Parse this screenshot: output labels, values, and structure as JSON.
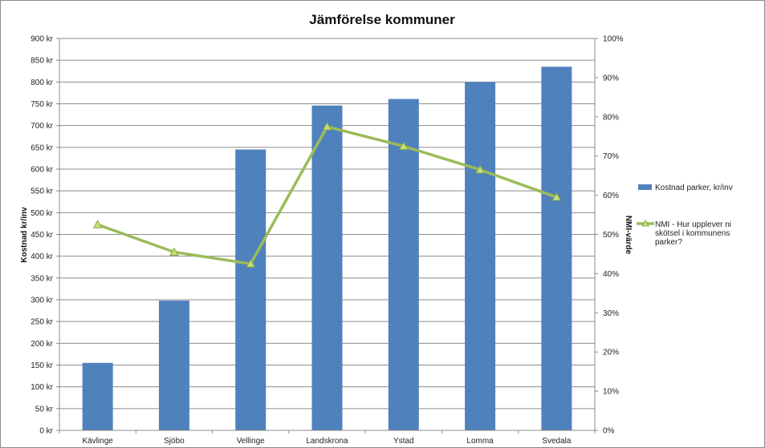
{
  "chart_data": {
    "type": "bar",
    "title": "Jämförelse kommuner",
    "categories": [
      "Kävlinge",
      "Sjöbo",
      "Vellinge",
      "Landskrona",
      "Ystad",
      "Lomma",
      "Svedala"
    ],
    "ylabel": "Kostnad kr/inv",
    "y2label": "NMI-värde",
    "ylim": [
      0,
      900
    ],
    "y2lim": [
      0,
      100
    ],
    "y_ticks": [
      "0 kr",
      "50 kr",
      "100 kr",
      "150 kr",
      "200 kr",
      "250 kr",
      "300 kr",
      "350 kr",
      "400 kr",
      "450 kr",
      "500 kr",
      "550 kr",
      "600 kr",
      "650 kr",
      "700 kr",
      "750 kr",
      "800 kr",
      "850 kr",
      "900 kr"
    ],
    "y2_ticks": [
      "0%",
      "10%",
      "20%",
      "30%",
      "40%",
      "50%",
      "60%",
      "70%",
      "80%",
      "90%",
      "100%"
    ],
    "series": [
      {
        "name": "Kostnad parker, kr/inv",
        "type": "bar",
        "axis": "left",
        "color": "#4f81bd",
        "values": [
          155,
          298,
          645,
          746,
          761,
          800,
          835
        ]
      },
      {
        "name_lines": [
          "NMI - Hur upplever ni",
          "skötsel i kommunens",
          "parker?"
        ],
        "type": "line",
        "axis": "right",
        "color": "#9bbb59",
        "marker": "triangle",
        "values": [
          52.5,
          45.5,
          42.5,
          77.5,
          72.5,
          66.5,
          59.5
        ]
      }
    ],
    "grid": true,
    "legend_position": "right"
  }
}
